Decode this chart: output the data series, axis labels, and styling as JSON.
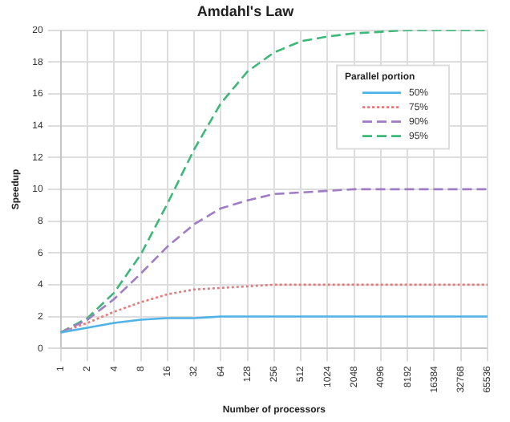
{
  "chart_data": {
    "type": "line",
    "title": "Amdahl's Law",
    "xlabel": "Number of processors",
    "ylabel": "Speedup",
    "legend_title": "Parallel portion",
    "categories": [
      "1",
      "2",
      "4",
      "8",
      "16",
      "32",
      "64",
      "128",
      "256",
      "512",
      "1024",
      "2048",
      "4096",
      "8192",
      "16384",
      "32768",
      "65536"
    ],
    "series": [
      {
        "name": "50%",
        "color": "#4fb3e8",
        "line_style": "solid",
        "values": [
          1,
          1.3,
          1.6,
          1.8,
          1.9,
          1.9,
          2,
          2,
          2,
          2,
          2,
          2,
          2,
          2,
          2,
          2,
          2
        ]
      },
      {
        "name": "75%",
        "color": "#e8787a",
        "line_style": "dotted",
        "values": [
          1,
          1.6,
          2.3,
          2.9,
          3.4,
          3.7,
          3.8,
          3.9,
          4,
          4,
          4,
          4,
          4,
          4,
          4,
          4,
          4
        ]
      },
      {
        "name": "90%",
        "color": "#a07cc5",
        "line_style": "dashed",
        "values": [
          1,
          1.8,
          3.1,
          4.7,
          6.4,
          7.8,
          8.8,
          9.3,
          9.7,
          9.8,
          9.9,
          10,
          10,
          10,
          10,
          10,
          10
        ]
      },
      {
        "name": "95%",
        "color": "#3cb878",
        "line_style": "dashed",
        "values": [
          1,
          1.9,
          3.5,
          5.9,
          9.1,
          12.5,
          15.4,
          17.4,
          18.6,
          19.3,
          19.6,
          19.8,
          19.9,
          20,
          20,
          20,
          20
        ]
      }
    ],
    "ylim": [
      0,
      20
    ],
    "yticks": [
      0,
      2,
      4,
      6,
      8,
      10,
      12,
      14,
      16,
      18,
      20
    ],
    "grid": true,
    "legend": "top right",
    "marker": "none"
  }
}
